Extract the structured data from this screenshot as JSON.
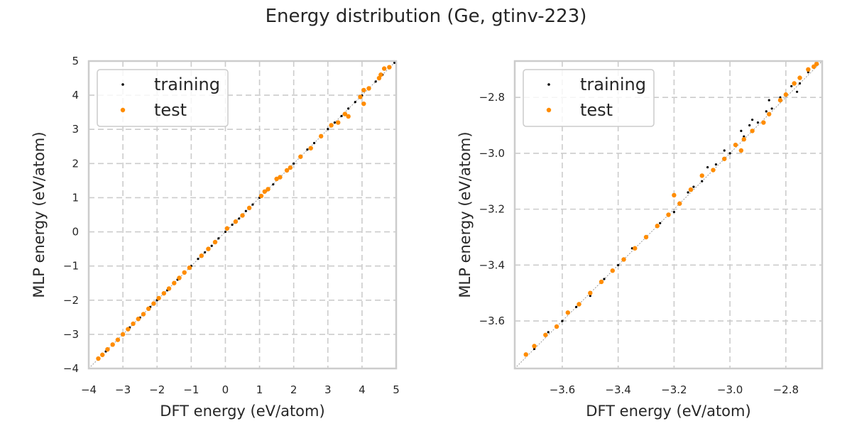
{
  "title": "Energy distribution (Ge, gtinv-223)",
  "colors": {
    "training": "#000000",
    "test": "#ff8c00"
  },
  "chart_data": [
    {
      "type": "scatter",
      "xlabel": "DFT energy (eV/atom)",
      "ylabel": "MLP energy (eV/atom)",
      "xlim": [
        -4,
        5
      ],
      "ylim": [
        -4,
        5
      ],
      "xticks": [
        "−4",
        "−3",
        "−2",
        "−1",
        "0",
        "1",
        "2",
        "3",
        "4",
        "5"
      ],
      "yticks": [
        "−4",
        "−3",
        "−2",
        "−1",
        "0",
        "1",
        "2",
        "3",
        "4",
        "5"
      ],
      "grid": true,
      "legend_position": "top-left",
      "series": [
        {
          "name": "training",
          "points": [
            [
              -3.7,
              -3.7
            ],
            [
              -3.5,
              -3.5
            ],
            [
              -3.3,
              -3.31
            ],
            [
              -3.0,
              -3.0
            ],
            [
              -2.8,
              -2.8
            ],
            [
              -2.5,
              -2.51
            ],
            [
              -2.2,
              -2.2
            ],
            [
              -2.0,
              -2.0
            ],
            [
              -1.7,
              -1.71
            ],
            [
              -1.4,
              -1.4
            ],
            [
              -1.2,
              -1.2
            ],
            [
              -1.0,
              -1.0
            ],
            [
              -0.8,
              -0.79
            ],
            [
              -0.6,
              -0.6
            ],
            [
              -0.4,
              -0.41
            ],
            [
              -0.2,
              -0.19
            ],
            [
              0.0,
              0.0
            ],
            [
              0.2,
              0.21
            ],
            [
              0.4,
              0.39
            ],
            [
              0.6,
              0.61
            ],
            [
              0.8,
              0.8
            ],
            [
              1.0,
              1.0
            ],
            [
              1.2,
              1.21
            ],
            [
              1.4,
              1.39
            ],
            [
              1.6,
              1.6
            ],
            [
              1.8,
              1.81
            ],
            [
              2.0,
              2.0
            ],
            [
              2.2,
              2.19
            ],
            [
              2.4,
              2.41
            ],
            [
              2.6,
              2.6
            ],
            [
              2.8,
              2.79
            ],
            [
              3.0,
              3.01
            ],
            [
              3.2,
              3.2
            ],
            [
              3.4,
              3.39
            ],
            [
              3.6,
              3.61
            ],
            [
              3.8,
              3.8
            ],
            [
              4.0,
              3.99
            ],
            [
              4.2,
              4.21
            ],
            [
              4.4,
              4.4
            ],
            [
              4.6,
              4.6
            ],
            [
              4.8,
              4.81
            ],
            [
              4.95,
              4.95
            ]
          ]
        },
        {
          "name": "test",
          "points": [
            [
              -3.72,
              -3.71
            ],
            [
              -3.6,
              -3.6
            ],
            [
              -3.45,
              -3.44
            ],
            [
              -3.3,
              -3.3
            ],
            [
              -3.15,
              -3.16
            ],
            [
              -3.0,
              -3.0
            ],
            [
              -2.85,
              -2.85
            ],
            [
              -2.7,
              -2.69
            ],
            [
              -2.55,
              -2.55
            ],
            [
              -2.4,
              -2.41
            ],
            [
              -2.25,
              -2.25
            ],
            [
              -2.1,
              -2.1
            ],
            [
              -1.95,
              -1.94
            ],
            [
              -1.8,
              -1.8
            ],
            [
              -1.65,
              -1.66
            ],
            [
              -1.5,
              -1.5
            ],
            [
              -1.35,
              -1.35
            ],
            [
              -1.2,
              -1.19
            ],
            [
              -1.05,
              -1.05
            ],
            [
              -0.7,
              -0.7
            ],
            [
              -0.5,
              -0.5
            ],
            [
              -0.3,
              -0.3
            ],
            [
              0.05,
              0.1
            ],
            [
              0.3,
              0.3
            ],
            [
              0.5,
              0.48
            ],
            [
              0.7,
              0.7
            ],
            [
              1.05,
              1.05
            ],
            [
              1.15,
              1.18
            ],
            [
              1.25,
              1.25
            ],
            [
              1.5,
              1.55
            ],
            [
              1.6,
              1.6
            ],
            [
              1.8,
              1.8
            ],
            [
              1.9,
              1.88
            ],
            [
              2.2,
              2.2
            ],
            [
              2.5,
              2.45
            ],
            [
              2.8,
              2.8
            ],
            [
              3.1,
              3.12
            ],
            [
              3.3,
              3.2
            ],
            [
              3.5,
              3.45
            ],
            [
              3.6,
              3.38
            ],
            [
              3.95,
              3.95
            ],
            [
              4.05,
              3.75
            ],
            [
              4.05,
              4.15
            ],
            [
              4.2,
              4.2
            ],
            [
              4.5,
              4.5
            ],
            [
              4.55,
              4.6
            ],
            [
              4.65,
              4.78
            ],
            [
              4.8,
              4.82
            ]
          ]
        }
      ]
    },
    {
      "type": "scatter",
      "xlabel": "DFT energy (eV/atom)",
      "ylabel": "MLP energy (eV/atom)",
      "xlim": [
        -3.77,
        -2.67
      ],
      "ylim": [
        -3.77,
        -2.67
      ],
      "xticks": [
        -3.6,
        -3.4,
        -3.2,
        -3.0,
        -2.8
      ],
      "xtick_labels": [
        "−3.6",
        "−3.4",
        "−3.2",
        "−3.0",
        "−2.8"
      ],
      "yticks": [
        -3.6,
        -3.4,
        -3.2,
        -3.0,
        -2.8
      ],
      "ytick_labels": [
        "−3.6",
        "−3.4",
        "−3.2",
        "−3.0",
        "−2.8"
      ],
      "grid": true,
      "legend_position": "top-left",
      "series": [
        {
          "name": "training",
          "points": [
            [
              -3.7,
              -3.7
            ],
            [
              -3.65,
              -3.64
            ],
            [
              -3.6,
              -3.6
            ],
            [
              -3.55,
              -3.55
            ],
            [
              -3.5,
              -3.51
            ],
            [
              -3.45,
              -3.45
            ],
            [
              -3.4,
              -3.4
            ],
            [
              -3.35,
              -3.34
            ],
            [
              -3.3,
              -3.3
            ],
            [
              -3.25,
              -3.25
            ],
            [
              -3.2,
              -3.21
            ],
            [
              -3.15,
              -3.14
            ],
            [
              -3.1,
              -3.1
            ],
            [
              -3.05,
              -3.04
            ],
            [
              -3.0,
              -3.0
            ],
            [
              -2.95,
              -2.94
            ],
            [
              -2.9,
              -2.89
            ],
            [
              -2.87,
              -2.85
            ],
            [
              -2.85,
              -2.84
            ],
            [
              -2.82,
              -2.8
            ],
            [
              -2.8,
              -2.79
            ],
            [
              -2.78,
              -2.76
            ],
            [
              -2.75,
              -2.75
            ],
            [
              -2.72,
              -2.71
            ],
            [
              -2.7,
              -2.69
            ],
            [
              -3.08,
              -3.05
            ],
            [
              -2.96,
              -2.92
            ],
            [
              -2.92,
              -2.88
            ],
            [
              -2.86,
              -2.81
            ],
            [
              -2.76,
              -2.78
            ],
            [
              -3.13,
              -3.12
            ],
            [
              -3.02,
              -2.99
            ],
            [
              -2.93,
              -2.9
            ]
          ]
        },
        {
          "name": "test",
          "points": [
            [
              -3.73,
              -3.72
            ],
            [
              -3.7,
              -3.69
            ],
            [
              -3.66,
              -3.65
            ],
            [
              -3.62,
              -3.62
            ],
            [
              -3.58,
              -3.57
            ],
            [
              -3.54,
              -3.54
            ],
            [
              -3.5,
              -3.5
            ],
            [
              -3.46,
              -3.46
            ],
            [
              -3.42,
              -3.42
            ],
            [
              -3.38,
              -3.38
            ],
            [
              -3.34,
              -3.34
            ],
            [
              -3.3,
              -3.3
            ],
            [
              -3.26,
              -3.26
            ],
            [
              -3.22,
              -3.22
            ],
            [
              -3.2,
              -3.15
            ],
            [
              -3.18,
              -3.18
            ],
            [
              -3.14,
              -3.13
            ],
            [
              -3.1,
              -3.08
            ],
            [
              -3.06,
              -3.06
            ],
            [
              -3.02,
              -3.02
            ],
            [
              -2.98,
              -2.97
            ],
            [
              -2.96,
              -2.99
            ],
            [
              -2.95,
              -2.95
            ],
            [
              -2.92,
              -2.92
            ],
            [
              -2.88,
              -2.89
            ],
            [
              -2.86,
              -2.86
            ],
            [
              -2.82,
              -2.81
            ],
            [
              -2.8,
              -2.79
            ],
            [
              -2.77,
              -2.75
            ],
            [
              -2.75,
              -2.73
            ],
            [
              -2.72,
              -2.7
            ],
            [
              -2.7,
              -2.69
            ],
            [
              -2.69,
              -2.68
            ]
          ]
        }
      ]
    }
  ]
}
